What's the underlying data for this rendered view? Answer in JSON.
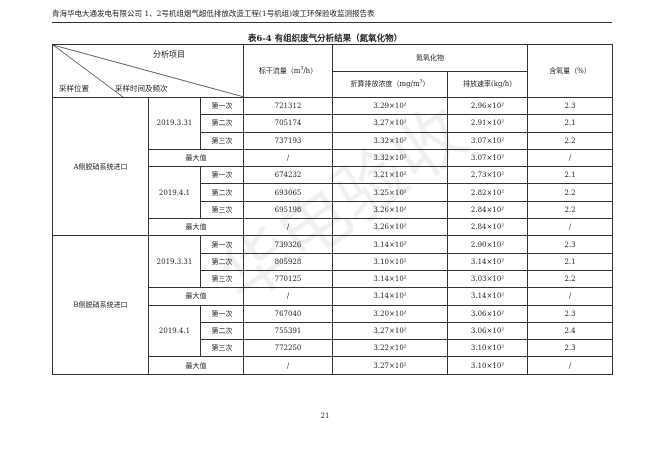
{
  "header": "青海华电大通发电有限公司 1、2号机组烟气超低排放改造工程(1号机组)竣工环保验收监测报告表",
  "title": "表6-4  有组织废气分析结果（氮氧化物）",
  "columns": {
    "analysis_item": "分析项目",
    "location": "采样位置",
    "time_freq": "采样时间及频次",
    "flow": "标干流量（m³/h）",
    "nox": "氮氧化物",
    "conc": "折算排放浓度（mg/m³）",
    "rate": "排放速率(kg/h)",
    "o2": "含氧量（%）"
  },
  "groups": [
    {
      "location": "A侧脱硝系统进口",
      "dates": [
        {
          "date": "2019.3.31",
          "rows": [
            [
              "第一次",
              "721312",
              "3.29×10²",
              "2.96×10²",
              "2.3"
            ],
            [
              "第二次",
              "705174",
              "3.27×10²",
              "2.91×10²",
              "2.1"
            ],
            [
              "第三次",
              "737193",
              "3.32×10²",
              "3.07×10²",
              "2.2"
            ]
          ],
          "max": [
            "最大值",
            "/",
            "3.32×10²",
            "3.07×10²",
            "/"
          ]
        },
        {
          "date": "2019.4.1",
          "rows": [
            [
              "第一次",
              "674232",
              "3.21×10²",
              "2.73×10²",
              "2.1"
            ],
            [
              "第二次",
              "693065",
              "3.25×10²",
              "2.82×10²",
              "2.2"
            ],
            [
              "第三次",
              "695198",
              "3.26×10²",
              "2.84×10²",
              "2.2"
            ]
          ],
          "max": [
            "最大值",
            "/",
            "3.26×10²",
            "2.84×10²",
            "/"
          ]
        }
      ]
    },
    {
      "location": "B侧脱硝系统进口",
      "dates": [
        {
          "date": "2019.3.31",
          "rows": [
            [
              "第一次",
              "739326",
              "3.14×10²",
              "2.90×10²",
              "2.3"
            ],
            [
              "第二次",
              "805928",
              "3.10×10²",
              "3.14×10²",
              "2.1"
            ],
            [
              "第三次",
              "770125",
              "3.14×10²",
              "3.03×10²",
              "2.2"
            ]
          ],
          "max": [
            "最大值",
            "/",
            "3.14×10²",
            "3.14×10²",
            "/"
          ]
        },
        {
          "date": "2019.4.1",
          "rows": [
            [
              "第一次",
              "767040",
              "3.20×10²",
              "3.06×10²",
              "2.3"
            ],
            [
              "第二次",
              "755391",
              "3.27×10²",
              "3.06×10²",
              "2.4"
            ],
            [
              "第三次",
              "772250",
              "3.22×10²",
              "3.10×10²",
              "2.3"
            ]
          ],
          "max": [
            "最大值",
            "/",
            "3.27×10²",
            "3.10×10²",
            "/"
          ]
        }
      ]
    }
  ],
  "watermark": "华电验收",
  "page_number": "21"
}
